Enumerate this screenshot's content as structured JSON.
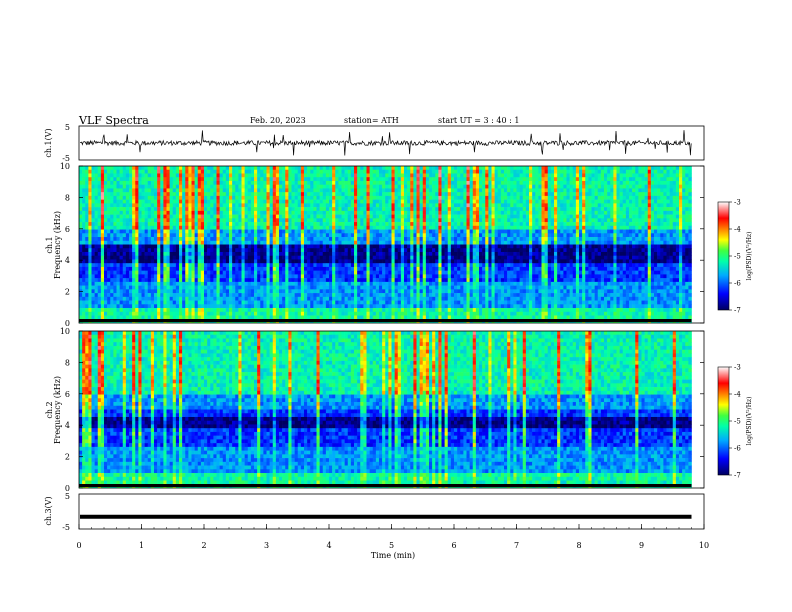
{
  "header": {
    "title": "VLF  Spectra",
    "date": "Feb. 20, 2023",
    "station": "station= ATH",
    "start": "start  UT  =   3  : 40 : 1"
  },
  "colors": {
    "spectrogram_low": "#000080",
    "spectrogram_mid": "#00ff80",
    "spectrogram_high": "#ff0000",
    "trace": "#000000"
  },
  "chart_data": [
    {
      "type": "line",
      "id": "ch1-waveform",
      "ylabel": "ch.1(V)",
      "ylim": [
        -5,
        5
      ],
      "yticks": [
        "5",
        "-5"
      ],
      "xlim": [
        0,
        10
      ],
      "description_values": {
        "baseline": 0,
        "typical_amplitude": 1
      }
    },
    {
      "type": "heatmap",
      "id": "ch1-spectrogram",
      "ylabel_channel": "ch.1",
      "ylabel": "Frequency  (kHz)",
      "ylim": [
        0,
        10
      ],
      "yticks": [
        "0",
        "2",
        "4",
        "6",
        "8",
        "10"
      ],
      "xlim": [
        0,
        9.8
      ],
      "dark_band_khz": [
        3.8,
        5.0
      ],
      "colorbar": {
        "label": "log(PSD)(V²/Hz)",
        "range": [
          -7,
          -3
        ],
        "ticks": [
          "-3",
          "-4",
          "-5",
          "-6",
          "-7"
        ]
      }
    },
    {
      "type": "heatmap",
      "id": "ch2-spectrogram",
      "ylabel_channel": "ch.2",
      "ylabel": "Frequency  (kHz)",
      "ylim": [
        0,
        10
      ],
      "yticks": [
        "0",
        "2",
        "4",
        "6",
        "8",
        "10"
      ],
      "xlim": [
        0,
        9.8
      ],
      "dark_band_khz": [
        3.9,
        4.6
      ],
      "colorbar": {
        "label": "log(PSD)(V²/Hz)",
        "range": [
          -7,
          -3
        ],
        "ticks": [
          "-3",
          "-4",
          "-5",
          "-6",
          "-7"
        ]
      }
    },
    {
      "type": "line",
      "id": "ch3-waveform",
      "ylabel": "ch.3(V)",
      "ylim": [
        -5,
        5
      ],
      "yticks": [
        "5",
        "-5"
      ],
      "xlim": [
        0,
        10
      ],
      "description_values": {
        "baseline": -1.5
      },
      "xlabel": "Time  (min)",
      "xticks": [
        "0",
        "1",
        "2",
        "3",
        "4",
        "5",
        "6",
        "7",
        "8",
        "9",
        "10"
      ]
    }
  ]
}
